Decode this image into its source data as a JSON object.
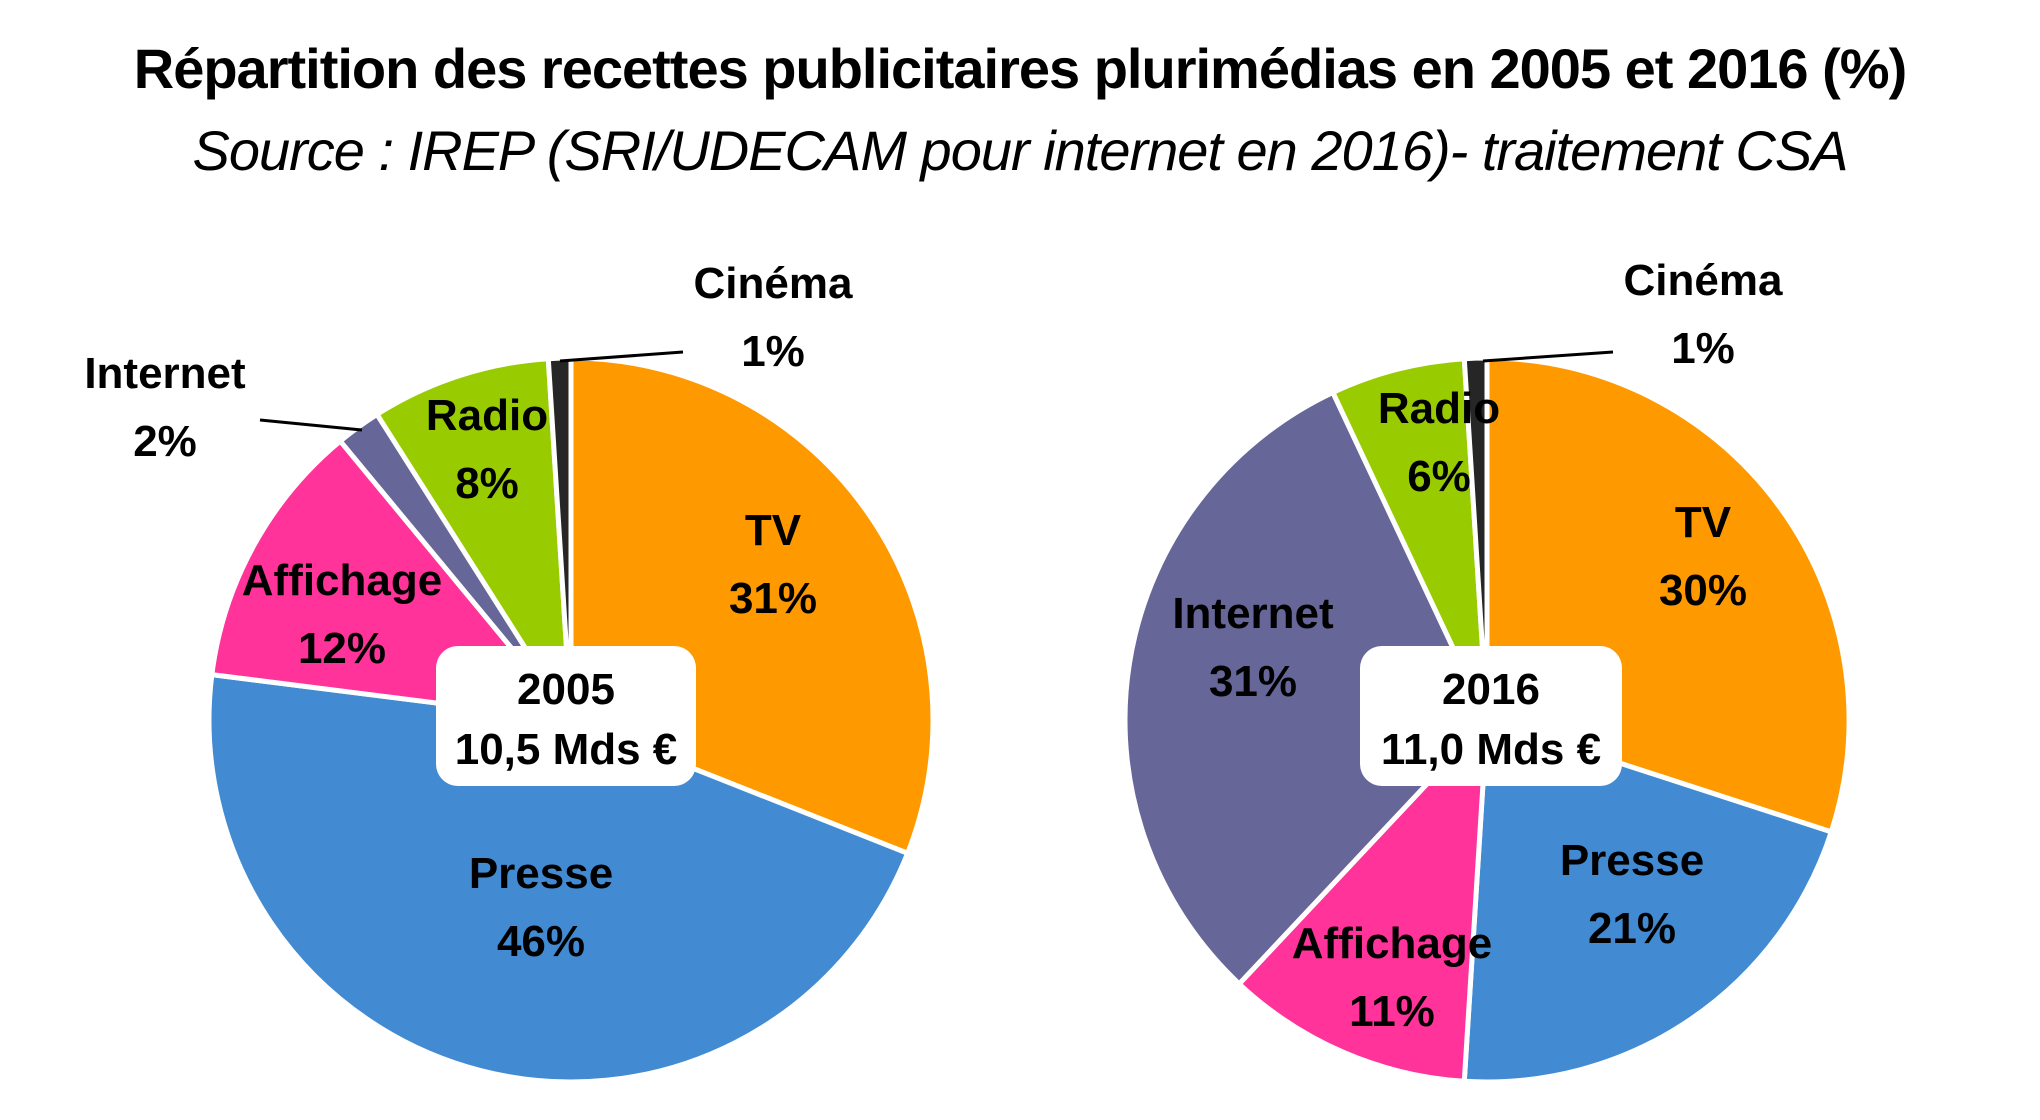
{
  "chart_data": [
    {
      "type": "pie",
      "title": "Répartition des recettes publicitaires plurimédias en 2005 et 2016 (%)",
      "subtitle": "Source : IREP (SRI/UDECAM pour internet en 2016)- traitement CSA",
      "center_label": {
        "year": "2005",
        "total": "10,5 Mds €"
      },
      "slices": [
        {
          "name": "TV",
          "value": 31,
          "label": "31%",
          "color": "#FF9900"
        },
        {
          "name": "Presse",
          "value": 46,
          "label": "46%",
          "color": "#428BD3"
        },
        {
          "name": "Affichage",
          "value": 12,
          "label": "12%",
          "color": "#FF3399"
        },
        {
          "name": "Internet",
          "value": 2,
          "label": "2%",
          "color": "#666699"
        },
        {
          "name": "Radio",
          "value": 8,
          "label": "8%",
          "color": "#99CC00"
        },
        {
          "name": "Cinéma",
          "value": 1,
          "label": "1%",
          "color": "#262626"
        }
      ]
    },
    {
      "type": "pie",
      "center_label": {
        "year": "2016",
        "total": "11,0 Mds €"
      },
      "slices": [
        {
          "name": "TV",
          "value": 30,
          "label": "30%",
          "color": "#FF9900"
        },
        {
          "name": "Presse",
          "value": 21,
          "label": "21%",
          "color": "#428BD3"
        },
        {
          "name": "Affichage",
          "value": 11,
          "label": "11%",
          "color": "#FF3399"
        },
        {
          "name": "Internet",
          "value": 31,
          "label": "31%",
          "color": "#666699"
        },
        {
          "name": "Radio",
          "value": 6,
          "label": "6%",
          "color": "#99CC00"
        },
        {
          "name": "Cinéma",
          "value": 1,
          "label": "1%",
          "color": "#262626"
        }
      ]
    }
  ],
  "header": {
    "title": "Répartition des recettes publicitaires plurimédias en 2005 et 2016 (%)",
    "subtitle": "Source : IREP (SRI/UDECAM pour internet en 2016)- traitement CSA"
  }
}
